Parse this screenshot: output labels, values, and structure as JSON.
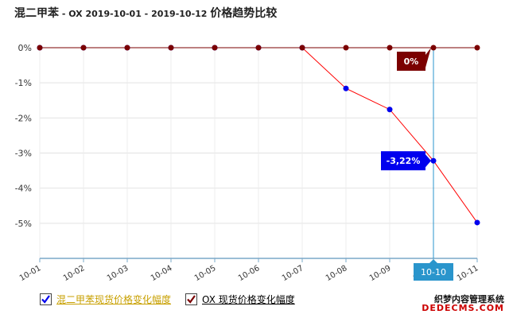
{
  "title": {
    "main": "混二甲苯",
    "sub": " - OX 2019-10-01 - 2019-10-12 ",
    "tail": "价格趋势比较"
  },
  "chart_data": {
    "type": "line",
    "categories": [
      "10-01",
      "10-02",
      "10-03",
      "10-04",
      "10-05",
      "10-06",
      "10-07",
      "10-08",
      "10-09",
      "10-10",
      "10-11"
    ],
    "yticks": [
      "0%",
      "-1%",
      "-2%",
      "-3%",
      "-4%",
      "-5%"
    ],
    "ylim": [
      -6,
      0
    ],
    "grid": true,
    "series": [
      {
        "name": "混二甲苯现货价格变化幅度",
        "color": "#ff0000",
        "marker_color": "#0000ee",
        "values": [
          0,
          0,
          0,
          0,
          0,
          0,
          0,
          -1.16,
          -1.76,
          -3.22,
          -4.98
        ]
      },
      {
        "name": "OX 现货价格变化幅度",
        "color": "#7b0000",
        "marker_color": "#7b0000",
        "values": [
          0,
          0,
          0,
          0,
          0,
          0,
          0,
          0,
          0,
          0,
          0
        ]
      }
    ],
    "tooltips": [
      {
        "series": 0,
        "index": 9,
        "label": "-3,22%",
        "color": "#0000ee"
      },
      {
        "series": 1,
        "index": 9,
        "label": "0%",
        "color": "#7b0000"
      }
    ],
    "crosshair": {
      "index": 9,
      "label": "10-10",
      "color": "#2a95cc"
    },
    "legend_position": "bottom-left"
  },
  "legend": {
    "items": [
      {
        "label": "混二甲苯现货价格变化幅度",
        "color": "#c8a000",
        "check_color": "#0000ee"
      },
      {
        "label": "OX 现货价格变化幅度",
        "color": "#000000",
        "check_color": "#7b0000"
      }
    ]
  },
  "watermark": {
    "line1": "织梦内容管理系统",
    "line2": "DEDECMS.COM"
  }
}
